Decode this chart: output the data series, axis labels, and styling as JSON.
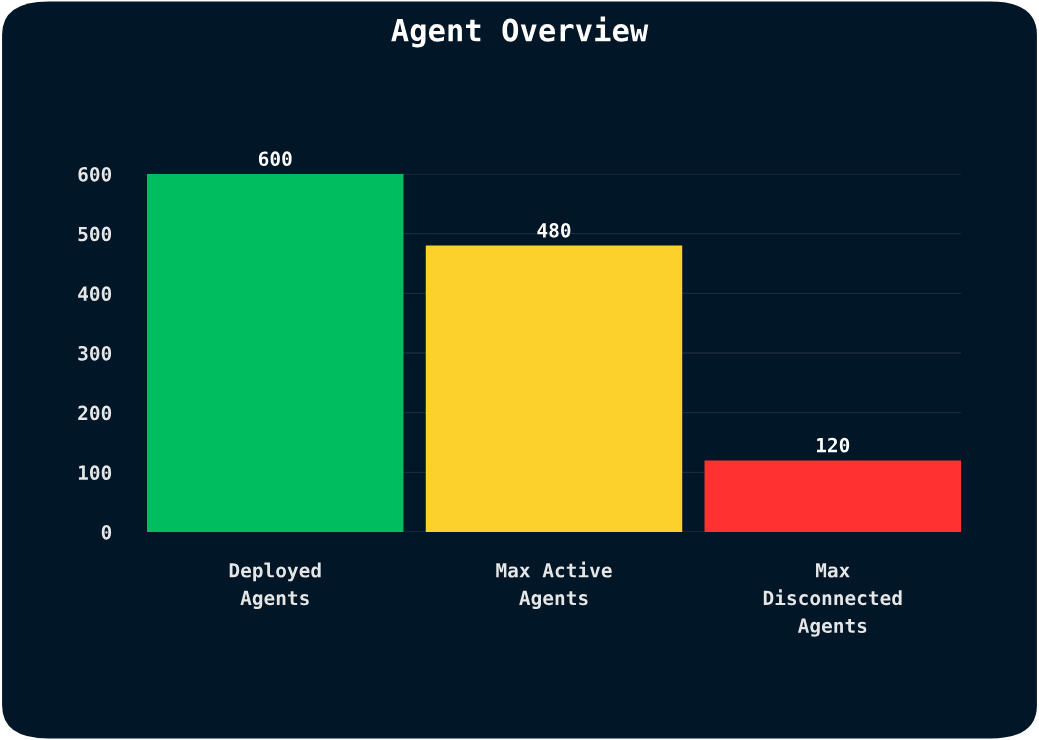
{
  "chart_data": {
    "type": "bar",
    "title": "Agent Overview",
    "categories": [
      "Deployed\nAgents",
      "Max Active\nAgents",
      "Max\nDisconnected\nAgents"
    ],
    "values": [
      600,
      480,
      120
    ],
    "colors": [
      "#00be5f",
      "#fdd12b",
      "#ff3131"
    ],
    "ylim": [
      0,
      600
    ],
    "yticks": [
      0,
      100,
      200,
      300,
      400,
      500,
      600
    ],
    "grid": "y",
    "data_labels": true,
    "legend": false
  }
}
